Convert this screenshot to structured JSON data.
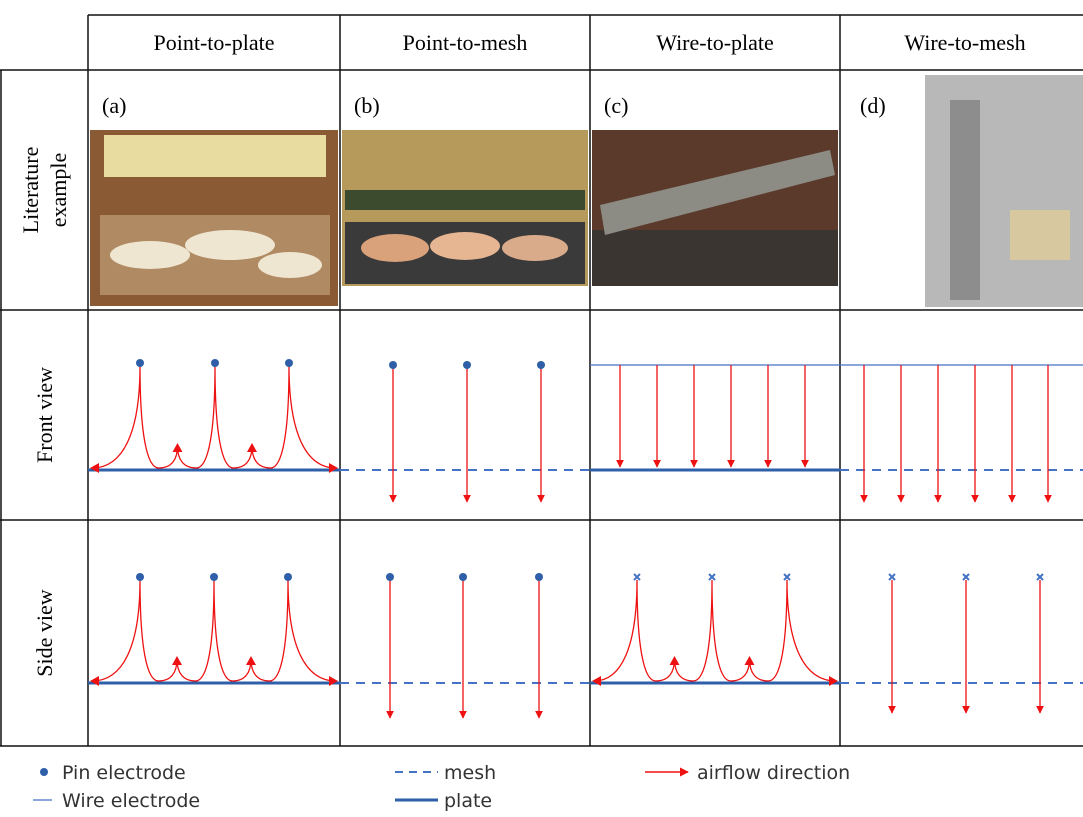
{
  "header": {
    "columns": [
      "Point-to-plate",
      "Point-to-mesh",
      "Wire-to-plate",
      "Wire-to-mesh"
    ]
  },
  "rows": [
    [
      "Literature",
      "example"
    ],
    [
      "Front view"
    ],
    [
      "Side view"
    ]
  ],
  "panels": [
    "(a)",
    "(b)",
    "(c)",
    "(d)"
  ],
  "legend": {
    "pin": "Pin electrode",
    "wire": "Wire electrode",
    "mesh": "mesh",
    "plate": "plate",
    "airflow": "airflow direction"
  }
}
